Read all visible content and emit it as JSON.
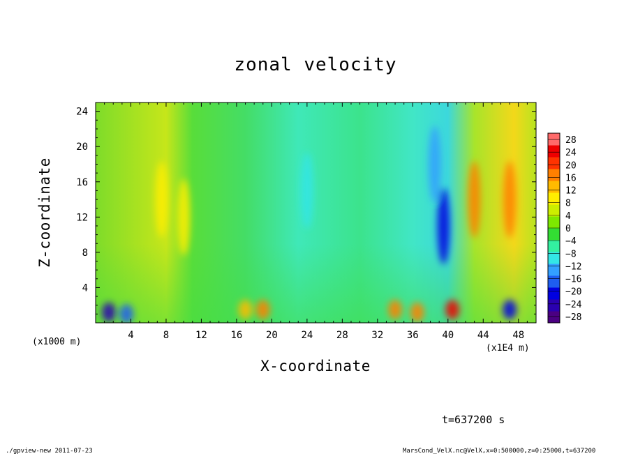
{
  "chart_data": {
    "type": "heatmap",
    "title": "zonal velocity",
    "xlabel": "X-coordinate",
    "ylabel": "Z-coordinate",
    "x_unit_left": "(x1000 m)",
    "x_unit_right": "(x1E4 m)",
    "xlim": [
      0,
      50
    ],
    "ylim": [
      0,
      25
    ],
    "x_ticks": [
      "4",
      "8",
      "12",
      "16",
      "20",
      "24",
      "28",
      "32",
      "36",
      "40",
      "44",
      "48"
    ],
    "y_ticks": [
      "4",
      "8",
      "12",
      "16",
      "20",
      "24"
    ],
    "colorbar_labels": [
      "28",
      "24",
      "20",
      "16",
      "12",
      "8",
      "4",
      "0",
      "-4",
      "-8",
      "-12",
      "-16",
      "-20",
      "-24",
      "-28"
    ],
    "colorbar_range": [
      -30,
      30
    ],
    "colorbar_colors": [
      "#4b0082",
      "#2a00b0",
      "#0000e0",
      "#1e5ef0",
      "#33a0ff",
      "#33e6e6",
      "#33f0a0",
      "#33dd33",
      "#7ee800",
      "#ccee00",
      "#ffee00",
      "#ffbb00",
      "#ff8000",
      "#ff3300",
      "#ee0000",
      "#ff6a6a"
    ],
    "velocity_features": [
      {
        "x": 1.5,
        "z": 1.2,
        "value": -24
      },
      {
        "x": 3.5,
        "z": 1.0,
        "value": -16
      },
      {
        "x": 7.5,
        "z": 14,
        "value": 10
      },
      {
        "x": 10,
        "z": 12,
        "value": 8
      },
      {
        "x": 17,
        "z": 1.5,
        "value": 14
      },
      {
        "x": 19,
        "z": 1.5,
        "value": 18
      },
      {
        "x": 24,
        "z": 15,
        "value": -8
      },
      {
        "x": 34,
        "z": 1.5,
        "value": 16
      },
      {
        "x": 36.5,
        "z": 1.2,
        "value": 18
      },
      {
        "x": 38.5,
        "z": 18,
        "value": -14
      },
      {
        "x": 39.5,
        "z": 11,
        "value": -20
      },
      {
        "x": 40.5,
        "z": 1.5,
        "value": 24
      },
      {
        "x": 43,
        "z": 14,
        "value": 16
      },
      {
        "x": 47,
        "z": 14,
        "value": 18
      },
      {
        "x": 47,
        "z": 1.5,
        "value": -20
      }
    ]
  },
  "time_label": "t=637200 s",
  "footer_left": "./gpview-new  2011-07-23",
  "footer_right": "MarsCond_VelX.nc@VelX,x=0:500000,z=0:25000,t=637200"
}
